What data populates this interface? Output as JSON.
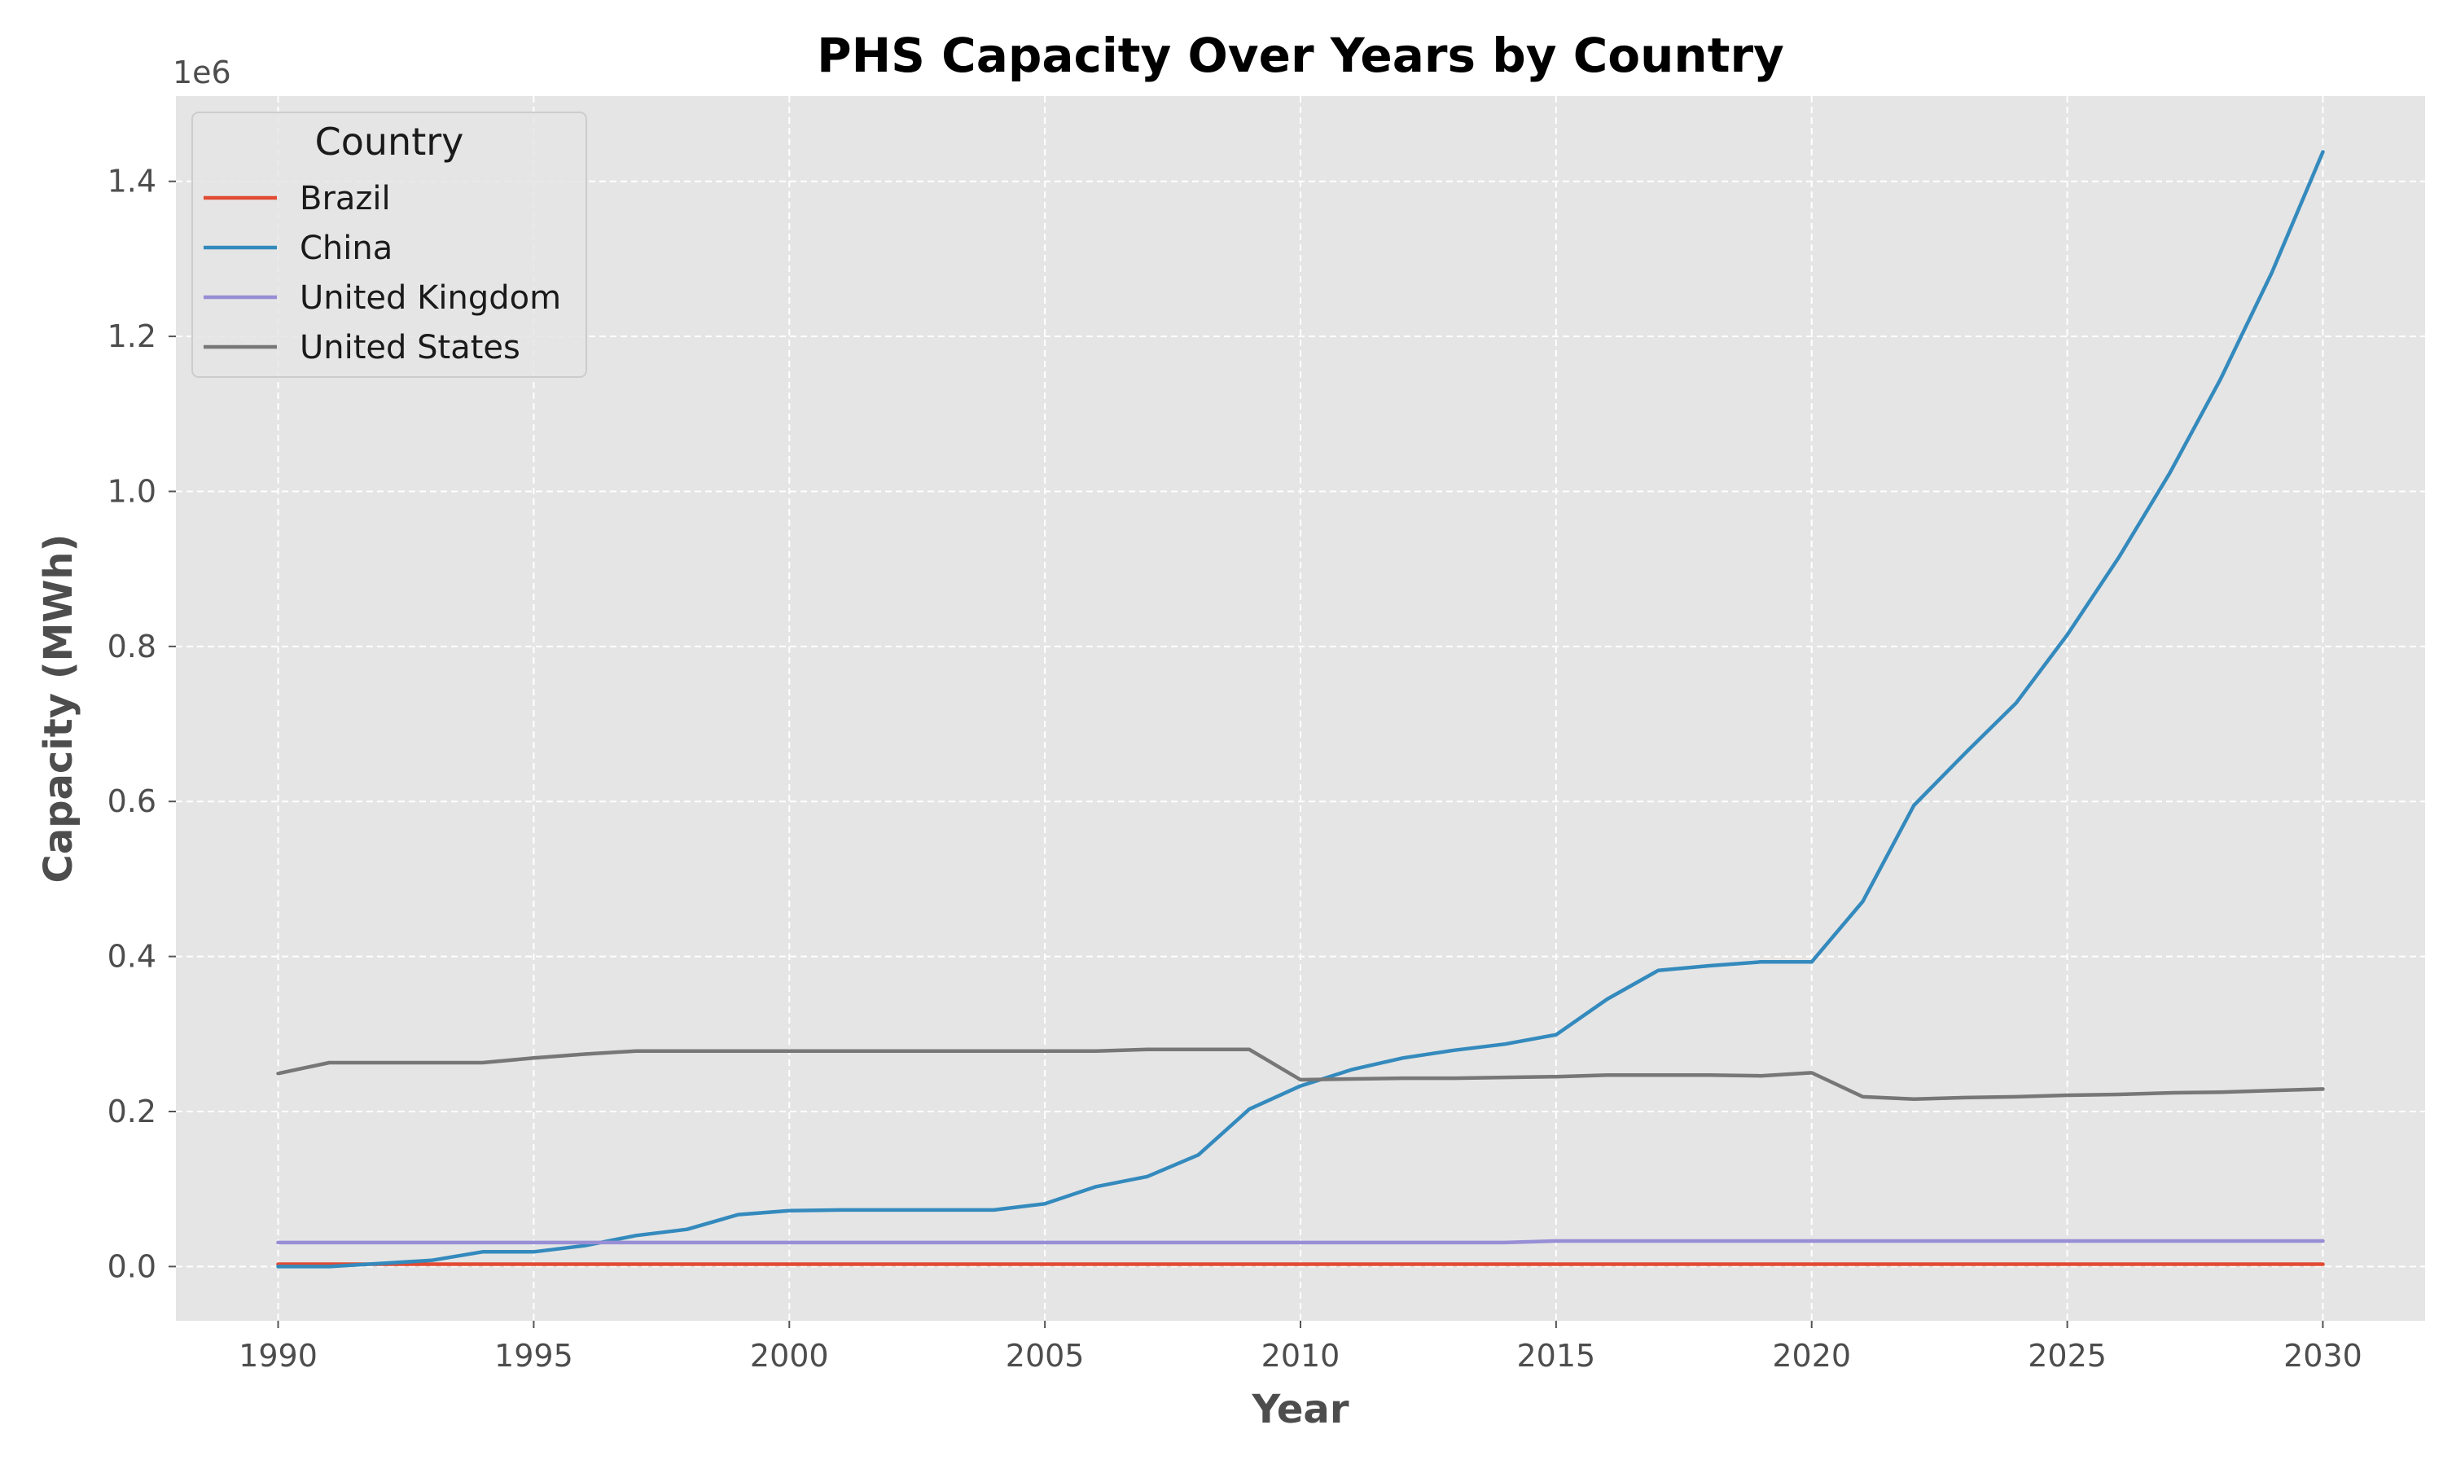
{
  "chart_data": {
    "type": "line",
    "title": "PHS Capacity Over Years by Country",
    "xlabel": "Year",
    "ylabel": "Capacity (MWh)",
    "y_offset_label": "1e6",
    "xlim": [
      1988,
      2032
    ],
    "ylim": [
      -70000,
      1510000
    ],
    "x_ticks": [
      1990,
      1995,
      2000,
      2005,
      2010,
      2015,
      2020,
      2025,
      2030
    ],
    "x_tick_labels": [
      "1990",
      "1995",
      "2000",
      "2005",
      "2010",
      "2015",
      "2020",
      "2025",
      "2030"
    ],
    "y_ticks": [
      0,
      200000,
      400000,
      600000,
      800000,
      1000000,
      1200000,
      1400000
    ],
    "y_tick_labels": [
      "0.0",
      "0.2",
      "0.4",
      "0.6",
      "0.8",
      "1.0",
      "1.2",
      "1.4"
    ],
    "grid": true,
    "legend": {
      "title": "Country",
      "position": "top-left"
    },
    "x": [
      1990,
      1991,
      1992,
      1993,
      1994,
      1995,
      1996,
      1997,
      1998,
      1999,
      2000,
      2001,
      2002,
      2003,
      2004,
      2005,
      2006,
      2007,
      2008,
      2009,
      2010,
      2011,
      2012,
      2013,
      2014,
      2015,
      2016,
      2017,
      2018,
      2019,
      2020,
      2021,
      2022,
      2023,
      2024,
      2025,
      2026,
      2027,
      2028,
      2029,
      2030
    ],
    "series": [
      {
        "name": "Brazil",
        "color": "#E24A33",
        "values": [
          3000,
          3000,
          3000,
          3000,
          3000,
          3000,
          3000,
          3000,
          3000,
          3000,
          3000,
          3000,
          3000,
          3000,
          3000,
          3000,
          3000,
          3000,
          3000,
          3000,
          3000,
          3000,
          3000,
          3000,
          3000,
          3000,
          3000,
          3000,
          3000,
          3000,
          3000,
          3000,
          3000,
          3000,
          3000,
          3000,
          3000,
          3000,
          3000,
          3000,
          3000
        ]
      },
      {
        "name": "China",
        "color": "#348ABD",
        "values": [
          0,
          0,
          4000,
          8000,
          19000,
          19000,
          27000,
          40000,
          48000,
          67000,
          72000,
          73000,
          73000,
          73000,
          73000,
          81000,
          103000,
          116000,
          144000,
          203000,
          233000,
          254000,
          269000,
          279000,
          287000,
          299000,
          345000,
          382000,
          388000,
          393000,
          393000,
          471000,
          595000,
          662000,
          727000,
          815000,
          914000,
          1023000,
          1145000,
          1282000,
          1438000
        ]
      },
      {
        "name": "United Kingdom",
        "color": "#988ED5",
        "values": [
          31000,
          31000,
          31000,
          31000,
          31000,
          31000,
          31000,
          31000,
          31000,
          31000,
          31000,
          31000,
          31000,
          31000,
          31000,
          31000,
          31000,
          31000,
          31000,
          31000,
          31000,
          31000,
          31000,
          31000,
          31000,
          33000,
          33000,
          33000,
          33000,
          33000,
          33000,
          33000,
          33000,
          33000,
          33000,
          33000,
          33000,
          33000,
          33000,
          33000,
          33000
        ]
      },
      {
        "name": "United States",
        "color": "#777777",
        "values": [
          249000,
          263000,
          263000,
          263000,
          263000,
          269000,
          274000,
          278000,
          278000,
          278000,
          278000,
          278000,
          278000,
          278000,
          278000,
          278000,
          278000,
          280000,
          280000,
          280000,
          241000,
          242000,
          243000,
          243000,
          244000,
          245000,
          247000,
          247000,
          247000,
          246000,
          250000,
          219000,
          216000,
          218000,
          219000,
          221000,
          222000,
          224000,
          225000,
          227000,
          229000
        ]
      }
    ]
  }
}
